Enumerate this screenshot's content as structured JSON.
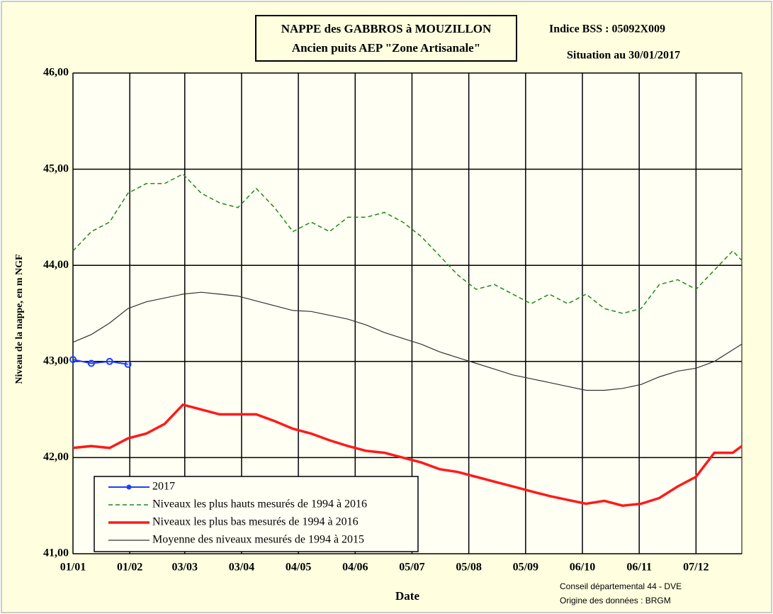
{
  "chart_data": {
    "type": "line",
    "title": [
      "NAPPE des GABBROS à MOUZILLON",
      "Ancien puits AEP \"Zone Artisanale\""
    ],
    "subtitle": [
      "Indice BSS : 05092X009",
      "Situation au 30/01/2017"
    ],
    "x_label": "Date",
    "y_label": "Niveau de la nappe, en m NGF",
    "credits": [
      "Conseil départemental 44 - DVE",
      "Origine des données : BRGM"
    ],
    "x": [
      0,
      10,
      20,
      30,
      40,
      50,
      60,
      70,
      80,
      90,
      100,
      110,
      120,
      130,
      140,
      150,
      160,
      170,
      180,
      190,
      200,
      210,
      220,
      230,
      240,
      250,
      260,
      270,
      280,
      290,
      300,
      310,
      320,
      330,
      340,
      350,
      360,
      365
    ],
    "xlim": [
      0,
      365
    ],
    "xticks": [
      {
        "value": 0,
        "label": "01/01"
      },
      {
        "value": 31,
        "label": "01/02"
      },
      {
        "value": 61,
        "label": "03/03"
      },
      {
        "value": 92,
        "label": "03/04"
      },
      {
        "value": 123,
        "label": "04/05"
      },
      {
        "value": 154,
        "label": "04/06"
      },
      {
        "value": 185,
        "label": "05/07"
      },
      {
        "value": 216,
        "label": "05/08"
      },
      {
        "value": 247,
        "label": "05/09"
      },
      {
        "value": 278,
        "label": "06/10"
      },
      {
        "value": 309,
        "label": "06/11"
      },
      {
        "value": 340,
        "label": "07/12"
      }
    ],
    "ylim": [
      41,
      46
    ],
    "yticks": [
      {
        "value": 41,
        "label": "41,00"
      },
      {
        "value": 42,
        "label": "42,00"
      },
      {
        "value": 43,
        "label": "43,00"
      },
      {
        "value": 44,
        "label": "44,00"
      },
      {
        "value": 45,
        "label": "45,00"
      },
      {
        "value": 46,
        "label": "46,00"
      }
    ],
    "grid": true,
    "legend": "lower left",
    "series": [
      {
        "name": "2017",
        "color": "#1f3fff",
        "values": [
          43.02,
          42.98,
          43.0,
          42.97,
          null,
          null,
          null,
          null,
          null,
          null,
          null,
          null,
          null,
          null,
          null,
          null,
          null,
          null,
          null,
          null,
          null,
          null,
          null,
          null,
          null,
          null,
          null,
          null,
          null,
          null,
          null,
          null,
          null,
          null,
          null,
          null,
          null,
          null
        ]
      },
      {
        "name": "Niveaux les plus hauts mesurés de 1994 à 2016",
        "color": "#1a8a1a",
        "values": [
          44.15,
          44.35,
          44.45,
          44.75,
          44.85,
          44.85,
          44.95,
          44.75,
          44.65,
          44.6,
          44.8,
          44.6,
          44.35,
          44.45,
          44.35,
          44.5,
          44.5,
          44.55,
          44.45,
          44.3,
          44.1,
          43.9,
          43.75,
          43.8,
          43.7,
          43.6,
          43.7,
          43.6,
          43.7,
          43.55,
          43.5,
          43.55,
          43.8,
          43.85,
          43.75,
          43.95,
          44.15,
          44.05
        ]
      },
      {
        "name": "Niveaux les plus bas mesurés de 1994 à 2016",
        "color": "#ff1a1a",
        "values": [
          42.1,
          42.12,
          42.1,
          42.2,
          42.25,
          42.35,
          42.55,
          42.5,
          42.45,
          42.45,
          42.45,
          42.38,
          42.3,
          42.25,
          42.18,
          42.12,
          42.07,
          42.05,
          42.0,
          41.95,
          41.88,
          41.85,
          41.8,
          41.75,
          41.7,
          41.65,
          41.6,
          41.56,
          41.52,
          41.55,
          41.5,
          41.52,
          41.58,
          41.7,
          41.8,
          42.05,
          42.05,
          42.12
        ]
      },
      {
        "name": "Moyenne des niveaux mesurés de 1994 à 2015",
        "color": "#333333",
        "values": [
          43.2,
          43.28,
          43.4,
          43.55,
          43.62,
          43.66,
          43.7,
          43.72,
          43.7,
          43.68,
          43.63,
          43.58,
          43.53,
          43.52,
          43.48,
          43.44,
          43.38,
          43.3,
          43.24,
          43.18,
          43.1,
          43.04,
          42.98,
          42.92,
          42.86,
          42.82,
          42.78,
          42.74,
          42.7,
          42.7,
          42.72,
          42.76,
          42.84,
          42.9,
          42.93,
          43.0,
          43.12,
          43.18
        ]
      }
    ]
  }
}
